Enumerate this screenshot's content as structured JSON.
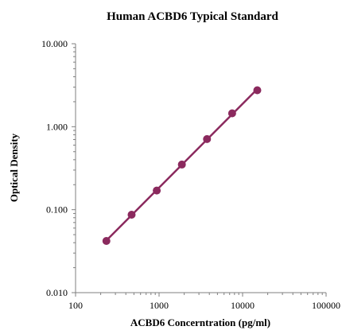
{
  "chart_data": {
    "type": "scatter",
    "title": "Human ACBD6 Typical Standard",
    "xlabel": "ACBD6 Concerntration (pg/ml)",
    "ylabel": "Optical Density",
    "x_scale": "log",
    "y_scale": "log",
    "xlim": [
      100,
      100000
    ],
    "ylim": [
      0.01,
      10
    ],
    "x_ticks": [
      "100",
      "1000",
      "10000",
      "100000"
    ],
    "y_ticks": [
      "0.010",
      "0.100",
      "1.000",
      "10.000"
    ],
    "grid": false,
    "legend": "none",
    "series": [
      {
        "x": [
          234,
          469,
          938,
          1875,
          3750,
          7500,
          15000
        ],
        "y": [
          0.042,
          0.087,
          0.17,
          0.35,
          0.71,
          1.45,
          2.75
        ]
      }
    ],
    "trendline": true,
    "colors": {
      "series": "#8b2a5e",
      "axis": "#7f7f7f"
    }
  }
}
